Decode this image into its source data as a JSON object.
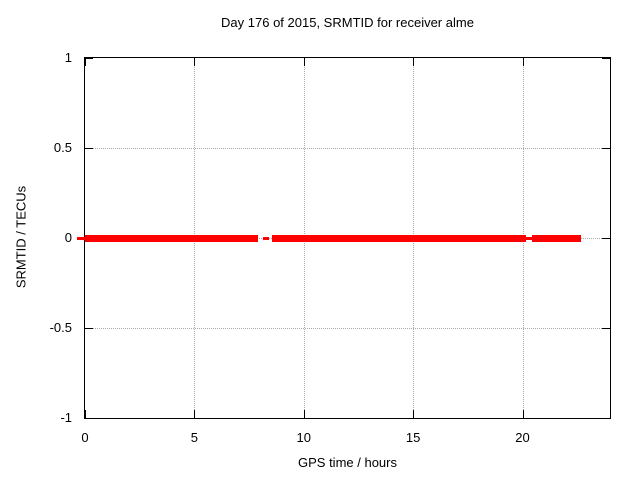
{
  "figure": {
    "background": "#ffffff",
    "text_color": "#000000",
    "axis_color": "#000000",
    "grid_color": "#aaaaaa",
    "series_color": "#ff0000"
  },
  "chart_data": {
    "type": "line",
    "title": "Day 176 of 2015, SRMTID for receiver alme",
    "xlabel": "GPS time / hours",
    "ylabel": "SRMTID / TECUs",
    "xlim": [
      0,
      24
    ],
    "ylim": [
      -1,
      1
    ],
    "xticks": [
      0,
      5,
      10,
      15,
      20
    ],
    "xtick_labels": [
      "0",
      "5",
      "10",
      "15",
      "20"
    ],
    "yticks": [
      -1,
      -0.5,
      0,
      0.5,
      1
    ],
    "ytick_labels": [
      "-1",
      "-0.5",
      "0",
      "0.5",
      "1"
    ],
    "grid": true,
    "legend": "none",
    "series": [
      {
        "name": "SRMTID",
        "color": "#ff0000",
        "y_value": 0,
        "thick_segments_hours": [
          [
            0.0,
            7.92
          ],
          [
            8.57,
            20.17
          ],
          [
            20.45,
            22.68
          ]
        ],
        "thin_segments_hours": [
          [
            -0.35,
            0.02
          ],
          [
            8.12,
            8.42
          ],
          [
            20.17,
            20.45
          ]
        ]
      }
    ]
  }
}
